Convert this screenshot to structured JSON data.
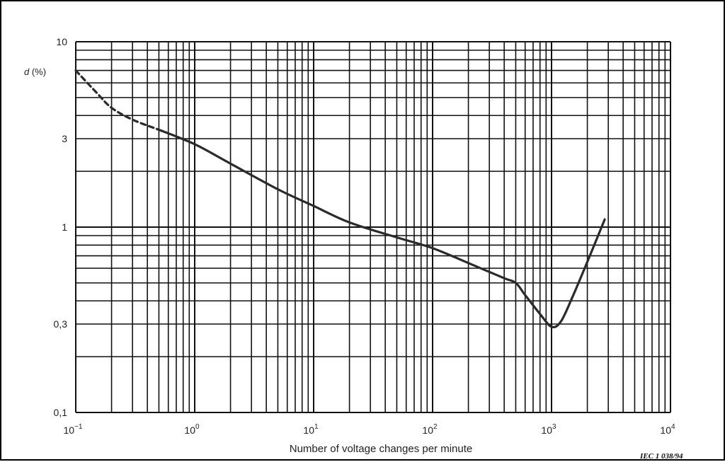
{
  "chart_data": {
    "type": "line",
    "xscale": "log",
    "yscale": "log",
    "xlim": [
      0.1,
      10000
    ],
    "ylim": [
      0.1,
      10
    ],
    "grid": true,
    "ylabel_var": "d",
    "ylabel_unit": " (%)",
    "xlabel": "Number of voltage changes per minute",
    "x_ticks": [
      {
        "base": "10",
        "exp": "−1",
        "value": 0.1
      },
      {
        "base": "10",
        "exp": "0",
        "value": 1
      },
      {
        "base": "10",
        "exp": "1",
        "value": 10
      },
      {
        "base": "10",
        "exp": "2",
        "value": 100
      },
      {
        "base": "10",
        "exp": "3",
        "value": 1000
      },
      {
        "base": "10",
        "exp": "4",
        "value": 10000
      }
    ],
    "y_ticks": [
      {
        "label": "10",
        "value": 10
      },
      {
        "label": "3",
        "value": 3
      },
      {
        "label": "1",
        "value": 1
      },
      {
        "label": "0,3",
        "value": 0.3
      },
      {
        "label": "0,1",
        "value": 0.1
      }
    ],
    "series": [
      {
        "style": "dashed",
        "x": [
          0.1,
          0.15,
          0.2,
          0.3,
          0.5
        ],
        "y": [
          7.0,
          5.3,
          4.4,
          3.8,
          3.35
        ]
      },
      {
        "style": "solid",
        "x": [
          0.5,
          1,
          2,
          5,
          10,
          20,
          50,
          100,
          200,
          400,
          500,
          600,
          800,
          1000,
          1200,
          1500,
          2000,
          2800
        ],
        "y": [
          3.35,
          2.8,
          2.2,
          1.6,
          1.3,
          1.06,
          0.88,
          0.77,
          0.64,
          0.53,
          0.5,
          0.43,
          0.34,
          0.29,
          0.31,
          0.42,
          0.65,
          1.1
        ]
      }
    ]
  },
  "reference": "IEC  1 038/94"
}
